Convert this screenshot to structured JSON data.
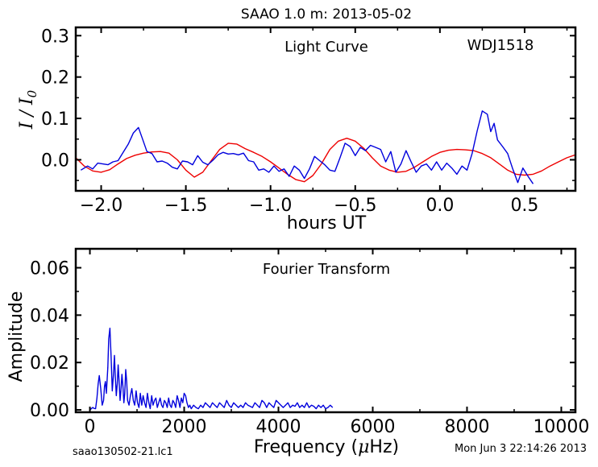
{
  "figure": {
    "title": "SAAO 1.0 m:  2013-05-02",
    "footer_left": "saao130502-21.lc1",
    "footer_right": "Mon Jun  3 22:14:26 2013"
  },
  "colors": {
    "data": "#0000dd",
    "model": "#ee0000",
    "axis": "#000000"
  },
  "chart_data": [
    {
      "type": "line",
      "title": "Light Curve",
      "annotation": "WDJ1518",
      "xlabel": "hours UT",
      "ylabel": "I / I0",
      "xlim": [
        -2.15,
        0.8
      ],
      "ylim": [
        -0.075,
        0.32
      ],
      "xticks": [
        -2.0,
        -1.5,
        -1.0,
        -0.5,
        0.0,
        0.5
      ],
      "xtick_labels": [
        "−2.0",
        "−1.5",
        "−1.0",
        "−0.5",
        "0.0",
        "0.5"
      ],
      "yticks": [
        0.0,
        0.1,
        0.2,
        0.3
      ],
      "ytick_labels": [
        "0.0",
        "0.1",
        "0.2",
        "0.3"
      ],
      "series": [
        {
          "role": "data",
          "x": [
            -2.12,
            -2.08,
            -2.05,
            -2.02,
            -1.99,
            -1.96,
            -1.93,
            -1.9,
            -1.87,
            -1.84,
            -1.81,
            -1.78,
            -1.76,
            -1.73,
            -1.7,
            -1.67,
            -1.64,
            -1.61,
            -1.58,
            -1.55,
            -1.52,
            -1.49,
            -1.46,
            -1.43,
            -1.4,
            -1.37,
            -1.34,
            -1.31,
            -1.28,
            -1.25,
            -1.22,
            -1.19,
            -1.16,
            -1.13,
            -1.1,
            -1.07,
            -1.04,
            -1.01,
            -0.98,
            -0.95,
            -0.92,
            -0.89,
            -0.86,
            -0.83,
            -0.8,
            -0.77,
            -0.74,
            -0.71,
            -0.68,
            -0.65,
            -0.62,
            -0.59,
            -0.56,
            -0.53,
            -0.5,
            -0.47,
            -0.44,
            -0.41,
            -0.38,
            -0.35,
            -0.32,
            -0.29,
            -0.26,
            -0.23,
            -0.2,
            -0.17,
            -0.14,
            -0.11,
            -0.08,
            -0.05,
            -0.02,
            0.01,
            0.04,
            0.07,
            0.1,
            0.13,
            0.16,
            0.19,
            0.22,
            0.25,
            0.28,
            0.3,
            0.32,
            0.34,
            0.37,
            0.4,
            0.43,
            0.46,
            0.49,
            0.52,
            0.55
          ],
          "y": [
            -0.025,
            -0.015,
            -0.022,
            -0.008,
            -0.01,
            -0.012,
            -0.005,
            -0.002,
            0.018,
            0.038,
            0.065,
            0.078,
            0.055,
            0.02,
            0.015,
            -0.005,
            -0.003,
            -0.008,
            -0.018,
            -0.022,
            -0.003,
            -0.005,
            -0.012,
            0.01,
            -0.006,
            -0.012,
            -0.001,
            0.012,
            0.018,
            0.014,
            0.015,
            0.012,
            0.016,
            -0.002,
            -0.005,
            -0.025,
            -0.022,
            -0.03,
            -0.015,
            -0.028,
            -0.022,
            -0.04,
            -0.015,
            -0.025,
            -0.045,
            -0.022,
            0.008,
            -0.002,
            -0.012,
            -0.025,
            -0.028,
            0.005,
            0.04,
            0.032,
            0.01,
            0.03,
            0.022,
            0.035,
            0.03,
            0.025,
            -0.005,
            0.02,
            -0.03,
            -0.01,
            0.022,
            -0.005,
            -0.03,
            -0.015,
            -0.01,
            -0.025,
            -0.005,
            -0.025,
            -0.008,
            -0.02,
            -0.035,
            -0.015,
            -0.025,
            0.015,
            0.07,
            0.118,
            0.11,
            0.068,
            0.088,
            0.048,
            0.032,
            0.015,
            -0.022,
            -0.055,
            -0.02,
            -0.04,
            -0.058
          ]
        },
        {
          "role": "model",
          "x": [
            -2.15,
            -2.1,
            -2.05,
            -2.0,
            -1.95,
            -1.9,
            -1.85,
            -1.8,
            -1.75,
            -1.7,
            -1.65,
            -1.6,
            -1.55,
            -1.5,
            -1.45,
            -1.4,
            -1.35,
            -1.3,
            -1.25,
            -1.2,
            -1.15,
            -1.1,
            -1.05,
            -1.0,
            -0.95,
            -0.9,
            -0.85,
            -0.8,
            -0.75,
            -0.7,
            -0.65,
            -0.6,
            -0.55,
            -0.5,
            -0.45,
            -0.4,
            -0.35,
            -0.3,
            -0.25,
            -0.2,
            -0.15,
            -0.1,
            -0.05,
            0.0,
            0.05,
            0.1,
            0.15,
            0.2,
            0.25,
            0.3,
            0.35,
            0.4,
            0.45,
            0.5,
            0.55,
            0.6,
            0.65,
            0.7,
            0.75,
            0.8
          ],
          "y": [
            0.005,
            -0.015,
            -0.027,
            -0.03,
            -0.024,
            -0.01,
            0.003,
            0.011,
            0.016,
            0.019,
            0.02,
            0.016,
            0.0,
            -0.025,
            -0.042,
            -0.03,
            -0.002,
            0.025,
            0.04,
            0.038,
            0.027,
            0.018,
            0.008,
            -0.005,
            -0.02,
            -0.035,
            -0.048,
            -0.053,
            -0.038,
            -0.01,
            0.025,
            0.045,
            0.052,
            0.045,
            0.028,
            0.005,
            -0.015,
            -0.025,
            -0.03,
            -0.028,
            -0.018,
            -0.005,
            0.008,
            0.018,
            0.023,
            0.025,
            0.024,
            0.022,
            0.015,
            0.005,
            -0.01,
            -0.025,
            -0.035,
            -0.037,
            -0.035,
            -0.027,
            -0.015,
            -0.005,
            0.005,
            0.012
          ]
        }
      ]
    },
    {
      "type": "line",
      "title": "Fourier Transform",
      "xlabel": "Frequency (μHz)",
      "ylabel": "Amplitude",
      "xlim": [
        -300,
        10300
      ],
      "ylim": [
        -0.001,
        0.068
      ],
      "xticks": [
        0,
        2000,
        4000,
        6000,
        8000,
        10000
      ],
      "xtick_labels": [
        "0",
        "2000",
        "4000",
        "6000",
        "8000",
        "10000"
      ],
      "yticks": [
        0.0,
        0.02,
        0.04,
        0.06
      ],
      "ytick_labels": [
        "0.00",
        "0.02",
        "0.04",
        "0.06"
      ],
      "series": [
        {
          "role": "data",
          "x": [
            0,
            30,
            60,
            90,
            120,
            150,
            175,
            200,
            230,
            260,
            290,
            310,
            330,
            350,
            380,
            400,
            425,
            450,
            475,
            500,
            520,
            540,
            560,
            580,
            600,
            620,
            640,
            660,
            680,
            700,
            720,
            740,
            760,
            780,
            800,
            830,
            860,
            890,
            920,
            950,
            980,
            1010,
            1040,
            1070,
            1100,
            1130,
            1160,
            1190,
            1220,
            1250,
            1280,
            1310,
            1340,
            1370,
            1400,
            1430,
            1460,
            1490,
            1520,
            1550,
            1580,
            1610,
            1640,
            1670,
            1700,
            1730,
            1760,
            1790,
            1820,
            1850,
            1880,
            1910,
            1940,
            1970,
            2000,
            2030,
            2060,
            2090,
            2120,
            2150,
            2200,
            2250,
            2300,
            2350,
            2400,
            2450,
            2500,
            2550,
            2600,
            2650,
            2700,
            2750,
            2800,
            2850,
            2900,
            2950,
            3000,
            3050,
            3100,
            3150,
            3200,
            3250,
            3300,
            3350,
            3400,
            3450,
            3500,
            3550,
            3600,
            3650,
            3700,
            3750,
            3800,
            3850,
            3900,
            3950,
            4000,
            4050,
            4100,
            4150,
            4200,
            4250,
            4300,
            4350,
            4400,
            4450,
            4500,
            4550,
            4600,
            4650,
            4700,
            4750,
            4800,
            4850,
            4900,
            4950,
            5000,
            5050,
            5100,
            5150
          ],
          "y": [
            0.0,
            0.0005,
            0.001,
            0.0006,
            0.0005,
            0.005,
            0.011,
            0.0145,
            0.009,
            0.002,
            0.004,
            0.01,
            0.012,
            0.007,
            0.018,
            0.03,
            0.0345,
            0.022,
            0.008,
            0.015,
            0.023,
            0.014,
            0.006,
            0.011,
            0.019,
            0.012,
            0.004,
            0.009,
            0.015,
            0.01,
            0.003,
            0.007,
            0.017,
            0.012,
            0.004,
            0.002,
            0.006,
            0.009,
            0.004,
            0.002,
            0.008,
            0.003,
            0.001,
            0.007,
            0.002,
            0.006,
            0.003,
            0.001,
            0.007,
            0.003,
            0.0005,
            0.006,
            0.002,
            0.004,
            0.005,
            0.001,
            0.003,
            0.005,
            0.002,
            0.001,
            0.004,
            0.003,
            0.001,
            0.005,
            0.002,
            0.001,
            0.004,
            0.003,
            0.001,
            0.006,
            0.004,
            0.001,
            0.005,
            0.003,
            0.007,
            0.006,
            0.003,
            0.001,
            0.002,
            0.0005,
            0.002,
            0.001,
            0.0005,
            0.002,
            0.001,
            0.003,
            0.002,
            0.001,
            0.003,
            0.002,
            0.001,
            0.003,
            0.002,
            0.001,
            0.004,
            0.002,
            0.001,
            0.003,
            0.002,
            0.001,
            0.002,
            0.001,
            0.003,
            0.002,
            0.0015,
            0.001,
            0.003,
            0.002,
            0.001,
            0.004,
            0.003,
            0.001,
            0.003,
            0.002,
            0.001,
            0.004,
            0.003,
            0.002,
            0.001,
            0.002,
            0.003,
            0.001,
            0.002,
            0.0015,
            0.003,
            0.001,
            0.002,
            0.001,
            0.003,
            0.001,
            0.002,
            0.0015,
            0.0005,
            0.002,
            0.001,
            0.002,
            0.0005,
            0.001,
            0.002,
            0.001
          ]
        }
      ]
    }
  ]
}
